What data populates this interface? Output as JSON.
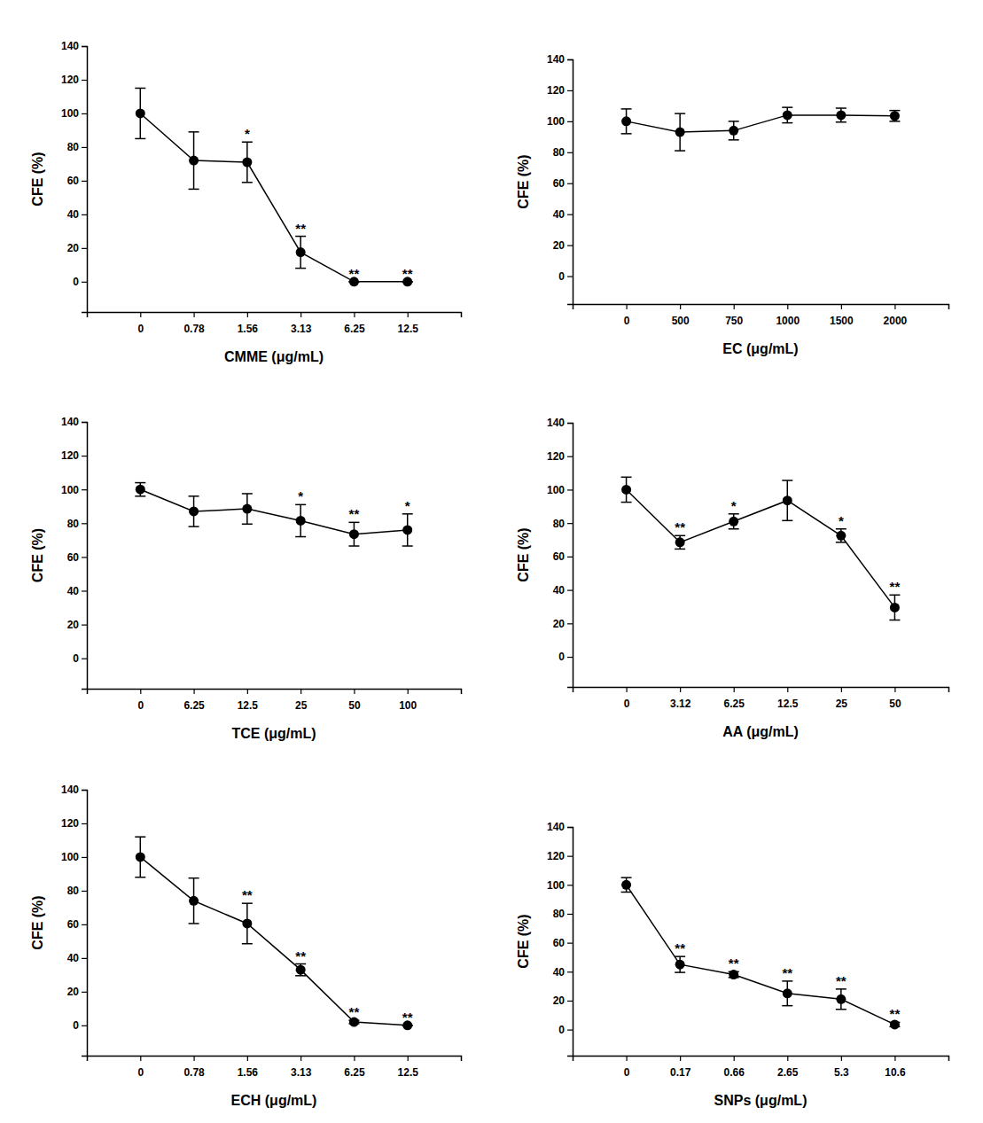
{
  "chart_data": [
    {
      "type": "line",
      "marker": "circle",
      "color": "#000000",
      "x_label": "CMME (μg/mL)",
      "y_label": "CFE (%)",
      "categories": [
        "0",
        "0.78",
        "1.56",
        "3.13",
        "6.25",
        "12.5"
      ],
      "values": [
        100,
        72,
        71,
        17.5,
        0,
        0
      ],
      "errors": [
        15,
        17,
        12,
        9.5,
        0,
        0
      ],
      "significance": [
        null,
        null,
        "*",
        "**",
        "**",
        "**"
      ],
      "ylim": [
        -18,
        140
      ],
      "yticks": [
        0,
        20,
        40,
        60,
        80,
        100,
        120,
        140
      ]
    },
    {
      "type": "line",
      "marker": "circle",
      "color": "#000000",
      "x_label": "EC (μg/mL)",
      "y_label": "CFE (%)",
      "categories": [
        "0",
        "500",
        "750",
        "1000",
        "1500",
        "2000"
      ],
      "values": [
        100,
        93,
        94,
        104,
        104,
        103.5
      ],
      "errors": [
        8,
        12,
        6,
        5,
        4.5,
        3.5
      ],
      "ylim": [
        -18,
        140
      ],
      "yticks": [
        0,
        20,
        40,
        60,
        80,
        100,
        120,
        140
      ]
    },
    {
      "type": "line",
      "marker": "circle",
      "color": "#000000",
      "x_label": "TCE (μg/mL)",
      "y_label": "CFE (%)",
      "categories": [
        "0",
        "6.25",
        "12.5",
        "25",
        "50",
        "100"
      ],
      "values": [
        100,
        87,
        88.5,
        81.5,
        73.5,
        76
      ],
      "errors": [
        4,
        9,
        9,
        9.5,
        7,
        9.5
      ],
      "significance": [
        null,
        null,
        null,
        "*",
        "**",
        "*"
      ],
      "ylim": [
        -18,
        140
      ],
      "yticks": [
        0,
        20,
        40,
        60,
        80,
        100,
        120,
        140
      ]
    },
    {
      "type": "line",
      "marker": "circle",
      "color": "#000000",
      "x_label": "AA (μg/mL)",
      "y_label": "CFE (%)",
      "categories": [
        "0",
        "3.12",
        "6.25",
        "12.5",
        "25",
        "50"
      ],
      "values": [
        100,
        68.5,
        81,
        93.5,
        72.5,
        29.5
      ],
      "errors": [
        7.5,
        4,
        4.5,
        12,
        4,
        7.5
      ],
      "significance": [
        null,
        "**",
        "*",
        null,
        "*",
        "**"
      ],
      "ylim": [
        -18,
        140
      ],
      "yticks": [
        0,
        20,
        40,
        60,
        80,
        100,
        120,
        140
      ]
    },
    {
      "type": "line",
      "marker": "circle",
      "color": "#000000",
      "x_label": "ECH (μg/mL)",
      "y_label": "CFE (%)",
      "categories": [
        "0",
        "0.78",
        "1.56",
        "3.13",
        "6.25",
        "12.5"
      ],
      "values": [
        100,
        74,
        60.5,
        33,
        2,
        0
      ],
      "errors": [
        12,
        13.5,
        12,
        3.5,
        1,
        0
      ],
      "significance": [
        null,
        null,
        "**",
        "**",
        "**",
        "**"
      ],
      "ylim": [
        -18,
        140
      ],
      "yticks": [
        0,
        20,
        40,
        60,
        80,
        100,
        120,
        140
      ]
    },
    {
      "type": "line",
      "marker": "circle",
      "color": "#000000",
      "x_label": "SNPs (μg/mL)",
      "y_label": "CFE (%)",
      "categories": [
        "0",
        "0.17",
        "0.66",
        "2.65",
        "5.3",
        "10.6"
      ],
      "values": [
        100,
        45,
        38,
        25,
        21,
        3.5
      ],
      "errors": [
        5,
        5.5,
        2,
        8.5,
        7,
        1.5
      ],
      "significance": [
        null,
        "**",
        "**",
        "**",
        "**",
        "**"
      ],
      "ylim": [
        -18,
        140
      ],
      "yticks": [
        0,
        20,
        40,
        60,
        80,
        100,
        120,
        140
      ]
    }
  ]
}
